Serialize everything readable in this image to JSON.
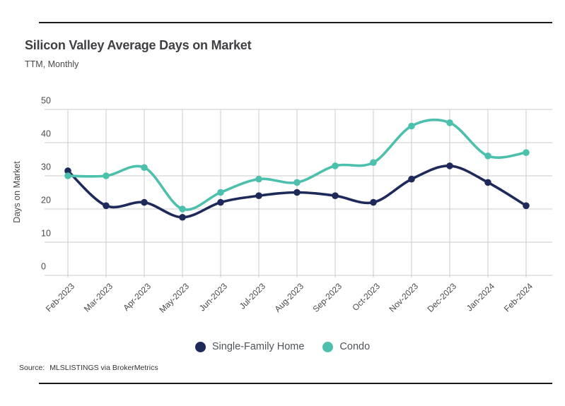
{
  "chart_data": {
    "type": "line",
    "title": "Silicon Valley Average Days on Market",
    "subtitle": "TTM, Monthly",
    "ylabel": "Days on Market",
    "xlabel": "",
    "ylim": [
      0,
      50
    ],
    "yticks": [
      0,
      10,
      20,
      30,
      40,
      50
    ],
    "grid": true,
    "legend_position": "bottom",
    "categories": [
      "Feb-2023",
      "Mar-2023",
      "Apr-2023",
      "May-2023",
      "Jun-2023",
      "Jul-2023",
      "Aug-2023",
      "Sep-2023",
      "Oct-2023",
      "Nov-2023",
      "Dec-2023",
      "Jan-2024",
      "Feb-2024"
    ],
    "series": [
      {
        "name": "Single-Family Home",
        "color": "#1e2a5a",
        "values": [
          31.5,
          21,
          22,
          17.5,
          22,
          24,
          25,
          24,
          22,
          29,
          33,
          28,
          21
        ]
      },
      {
        "name": "Condo",
        "color": "#4cc0ac",
        "values": [
          30,
          30,
          32.5,
          20,
          25,
          29,
          28,
          33,
          34,
          45,
          46,
          36,
          37
        ]
      }
    ]
  },
  "footer": {
    "label": "Source:",
    "value": "MLSLISTINGS via BrokerMetrics"
  },
  "colors": {
    "gridline": "#cbcbcb",
    "axis_text": "#4a4a4a",
    "rule": "#1a1a1a",
    "title_text": "#3f4044"
  }
}
